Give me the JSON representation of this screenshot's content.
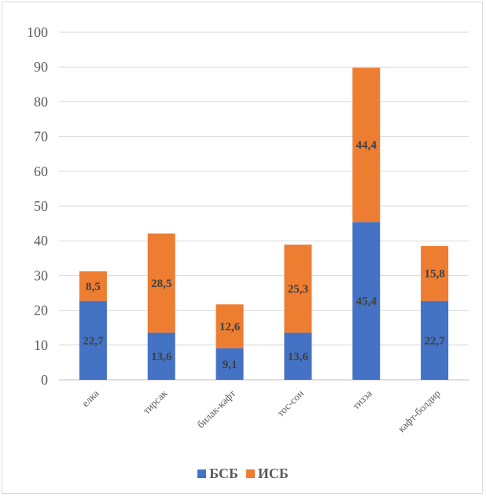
{
  "chart_data": {
    "type": "bar",
    "stacked": true,
    "categories": [
      "елка",
      "тирсак",
      "билак-кафт",
      "тос-сон",
      "тизза",
      "кафт-болдир"
    ],
    "series": [
      {
        "name": "БСБ",
        "color": "#4472C4",
        "values": [
          22.7,
          13.6,
          9.1,
          13.6,
          45.4,
          22.7
        ],
        "labels": [
          "22,7",
          "13,6",
          "9,1",
          "13,6",
          "45,4",
          "22,7"
        ]
      },
      {
        "name": "ИСБ",
        "color": "#ED7D31",
        "values": [
          8.5,
          28.5,
          12.6,
          25.3,
          44.4,
          15.8
        ],
        "labels": [
          "8,5",
          "28,5",
          "12,6",
          "25,3",
          "44,4",
          "15,8"
        ]
      }
    ],
    "ylim": [
      0,
      100
    ],
    "yticks": [
      0,
      10,
      20,
      30,
      40,
      50,
      60,
      70,
      80,
      90,
      100
    ],
    "grid": true,
    "legend_position": "bottom",
    "title": "",
    "xlabel": "",
    "ylabel": ""
  }
}
